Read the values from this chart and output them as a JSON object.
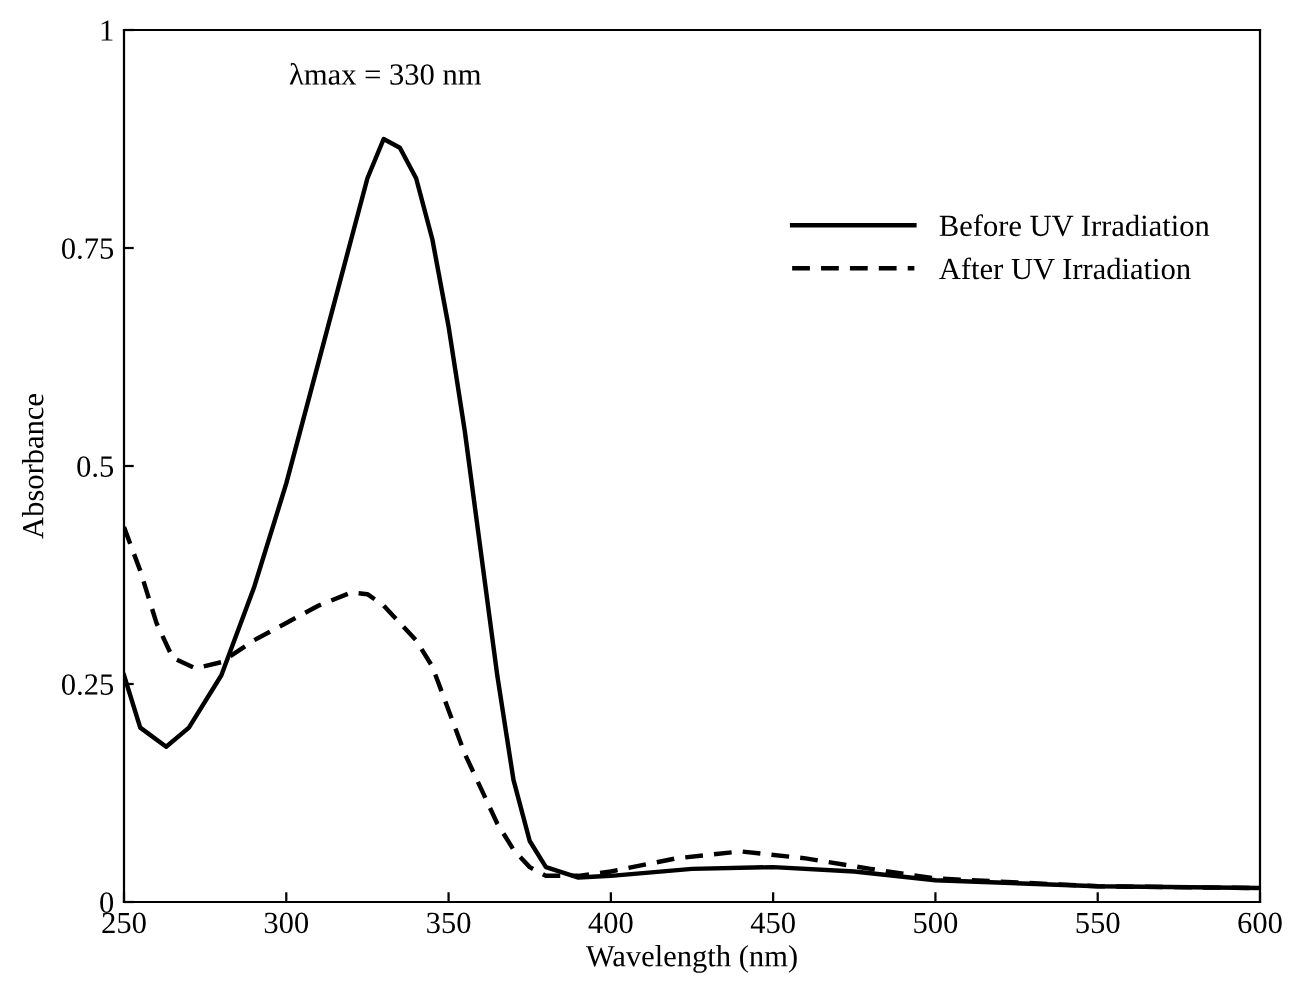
{
  "chart_data": {
    "type": "line",
    "xlabel": "Wavelength (nm)",
    "ylabel": "Absorbance",
    "xlim": [
      250,
      600
    ],
    "ylim": [
      0,
      1
    ],
    "xticks": [
      250,
      300,
      350,
      400,
      450,
      500,
      550,
      600
    ],
    "yticks": [
      0,
      0.25,
      0.5,
      0.75,
      1
    ],
    "grid": false,
    "legend": "top right",
    "marker": "none",
    "annotations": [
      "λmax = 330 nm"
    ],
    "series": [
      {
        "name": "Before UV Irradiation",
        "color": "#000000",
        "line_style": "solid",
        "x": [
          250,
          255,
          263,
          270,
          280,
          290,
          300,
          310,
          320,
          325,
          330,
          335,
          340,
          345,
          350,
          355,
          360,
          365,
          370,
          375,
          380,
          390,
          400,
          425,
          450,
          475,
          500,
          550,
          600
        ],
        "values": [
          0.26,
          0.2,
          0.178,
          0.2,
          0.26,
          0.36,
          0.48,
          0.62,
          0.76,
          0.83,
          0.875,
          0.865,
          0.83,
          0.76,
          0.66,
          0.54,
          0.4,
          0.26,
          0.14,
          0.07,
          0.04,
          0.028,
          0.03,
          0.038,
          0.04,
          0.035,
          0.025,
          0.018,
          0.016
        ]
      },
      {
        "name": "After UV Irradiation",
        "color": "#000000",
        "line_style": "dashed",
        "x": [
          250,
          255,
          260,
          265,
          272,
          280,
          290,
          300,
          310,
          320,
          325,
          330,
          340,
          345,
          350,
          355,
          360,
          365,
          370,
          375,
          380,
          390,
          400,
          420,
          440,
          460,
          480,
          500,
          550,
          600
        ],
        "values": [
          0.43,
          0.38,
          0.32,
          0.28,
          0.268,
          0.275,
          0.3,
          0.32,
          0.34,
          0.355,
          0.353,
          0.34,
          0.3,
          0.27,
          0.22,
          0.17,
          0.13,
          0.09,
          0.06,
          0.04,
          0.03,
          0.03,
          0.035,
          0.05,
          0.058,
          0.05,
          0.038,
          0.027,
          0.018,
          0.016
        ]
      }
    ]
  }
}
